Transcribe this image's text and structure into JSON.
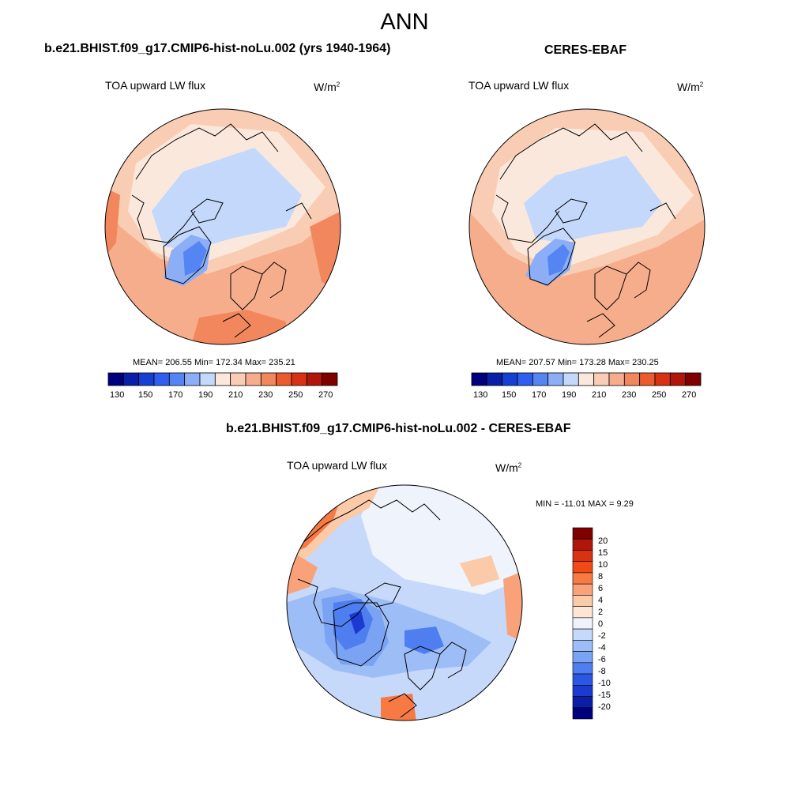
{
  "main_title": "ANN",
  "panels": [
    {
      "title": "b.e21.BHIST.f09_g17.CMIP6-hist-noLu.002 (yrs 1940-1964)",
      "variable": "TOA upward LW flux",
      "units_base": "W/m",
      "units_exp": "2",
      "stats": "MEAN= 206.55  Min= 172.34  Max= 235.21",
      "colorbar_labels": [
        "130",
        "150",
        "170",
        "190",
        "210",
        "230",
        "250",
        "270"
      ]
    },
    {
      "title": "CERES-EBAF",
      "variable": "TOA upward LW flux",
      "units_base": "W/m",
      "units_exp": "2",
      "stats": "MEAN= 207.57  Min= 173.28  Max= 230.25",
      "colorbar_labels": [
        "130",
        "150",
        "170",
        "190",
        "210",
        "230",
        "250",
        "270"
      ]
    }
  ],
  "diff_panel": {
    "title": "b.e21.BHIST.f09_g17.CMIP6-hist-noLu.002 - CERES-EBAF",
    "variable": "TOA upward LW flux",
    "units_base": "W/m",
    "units_exp": "2",
    "stats": "MIN = -11.01 MAX =   9.29",
    "colorbar_labels": [
      "20",
      "15",
      "10",
      "8",
      "6",
      "4",
      "2",
      "0",
      "-2",
      "-4",
      "-6",
      "-8",
      "-10",
      "-15",
      "-20"
    ]
  },
  "colors": {
    "abs_scale": [
      "#00007f",
      "#0a1fa8",
      "#1540d4",
      "#2f5ef0",
      "#5585f2",
      "#8caef7",
      "#c3d8fb",
      "#fbe8dc",
      "#f9cdb3",
      "#f6ad8c",
      "#f2875e",
      "#ec5a2f",
      "#d83114",
      "#b0170a",
      "#800000"
    ],
    "diff_scale": [
      "#800000",
      "#b0170a",
      "#d83114",
      "#f04a15",
      "#f77a45",
      "#f9a279",
      "#fbcaa9",
      "#fde6d6",
      "#eef3fc",
      "#c6d9fa",
      "#9dbdf6",
      "#7aa3f3",
      "#4f7ef0",
      "#2a58e6",
      "#1a3ad0",
      "#0a1fa8",
      "#00007f"
    ]
  }
}
